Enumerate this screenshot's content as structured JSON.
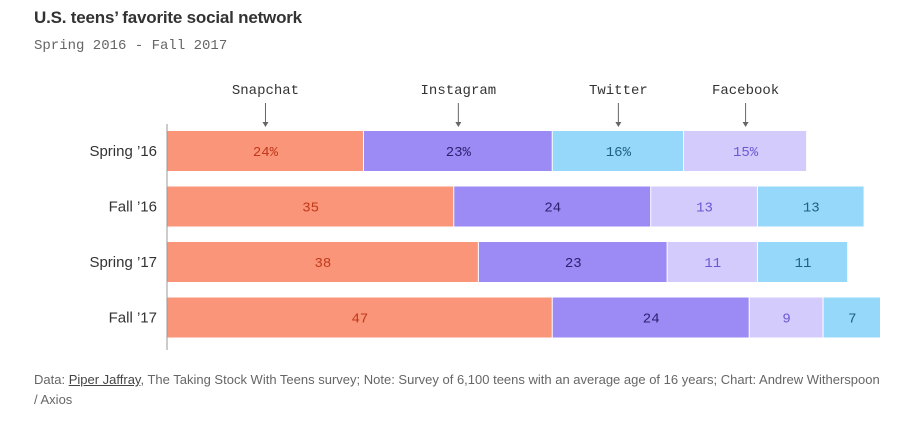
{
  "chart_data": {
    "type": "bar",
    "orientation": "horizontal",
    "stacked": true,
    "title": "U.S. teens’ favorite social network",
    "subtitle": "Spring 2016 - Fall 2017",
    "categories": [
      "Spring ’16",
      "Fall ’16",
      "Spring ’17",
      "Fall ’17"
    ],
    "series": [
      {
        "name": "Snapchat",
        "color": "#fa9579",
        "text_color": "#c0391b",
        "labels": [
          "24%",
          "35",
          "38",
          "47"
        ],
        "values": [
          24,
          35,
          38,
          47
        ]
      },
      {
        "name": "Instagram",
        "color": "#9d8bf5",
        "text_color": "#2d2070",
        "labels": [
          "23%",
          "24",
          "23",
          "24"
        ],
        "values": [
          23,
          24,
          23,
          24
        ]
      },
      {
        "name": "Twitter",
        "color": "#95d8fa",
        "text_color": "#1f5f82",
        "labels": [
          "16%",
          "13",
          "11",
          "7"
        ],
        "values": [
          16,
          13,
          11,
          7
        ]
      },
      {
        "name": "Facebook",
        "color": "#d2cbfb",
        "text_color": "#6e57d6",
        "labels": [
          "15%",
          "13",
          "11",
          "9"
        ],
        "values": [
          15,
          13,
          11,
          9
        ]
      }
    ],
    "segment_order": [
      [
        "Snapchat",
        "Instagram",
        "Twitter",
        "Facebook"
      ],
      [
        "Snapchat",
        "Instagram",
        "Facebook",
        "Twitter"
      ],
      [
        "Snapchat",
        "Instagram",
        "Facebook",
        "Twitter"
      ],
      [
        "Snapchat",
        "Instagram",
        "Facebook",
        "Twitter"
      ]
    ],
    "xlim": [
      0,
      87
    ]
  },
  "footer": {
    "prefix": "Data: ",
    "link_text": "Piper Jaffray",
    "text": ", The Taking Stock With Teens survey; Note: Survey of 6,100 teens with an average age of 16 years; Chart: Andrew Witherspoon / Axios"
  }
}
